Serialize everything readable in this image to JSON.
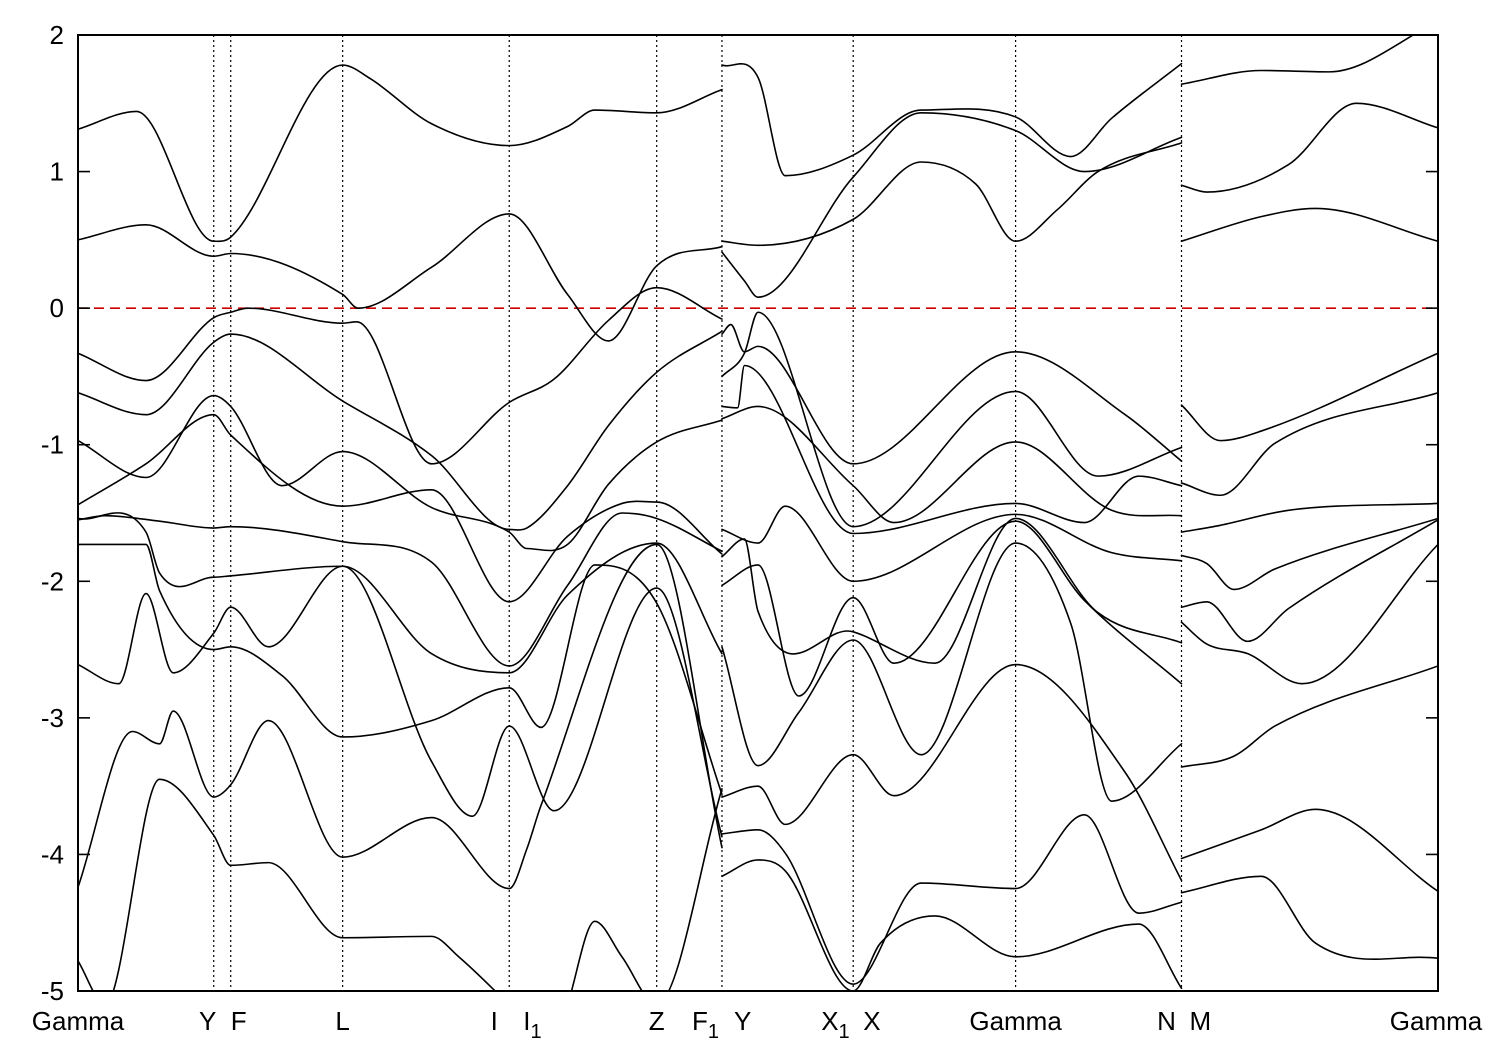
{
  "chart_data": {
    "type": "line",
    "title": "",
    "xlabel": "",
    "ylabel": "",
    "ylim": [
      -5,
      2
    ],
    "yticks": [
      2,
      1,
      0,
      -1,
      -2,
      -3,
      -4,
      -5
    ],
    "ytick_labels": [
      "2",
      "1",
      "0",
      "-1",
      "-2",
      "-3",
      "-4",
      "-5"
    ],
    "fermi_level": 0,
    "fermi_color": "#cc0000",
    "line_color": "#000000",
    "grid": false,
    "kpoints": [
      {
        "label": "Gamma",
        "x": 0.0,
        "line": false
      },
      {
        "label": "Y",
        "x": 0.0998,
        "line": true
      },
      {
        "label": "F",
        "x": 0.1123,
        "line": true
      },
      {
        "label": "L",
        "x": 0.1946,
        "line": true
      },
      {
        "label": "I",
        "x": 0.3171,
        "line": true
      },
      {
        "label": "I1",
        "x": 0.3171,
        "line": false
      },
      {
        "label": "Z",
        "x": 0.4255,
        "line": true
      },
      {
        "label": "F1",
        "x": 0.4735,
        "line": true
      },
      {
        "label": "Y",
        "x": 0.4735,
        "line": false
      },
      {
        "label": "X1",
        "x": 0.57,
        "line": true
      },
      {
        "label": "X",
        "x": 0.57,
        "line": false
      },
      {
        "label": "Gamma",
        "x": 0.6894,
        "line": true
      },
      {
        "label": "N",
        "x": 0.8114,
        "line": true
      },
      {
        "label": "M",
        "x": 0.8114,
        "line": false
      },
      {
        "label": "Gamma",
        "x": 1.0,
        "line": false
      }
    ],
    "bands": [
      {
        "x": [
          0.0,
          0.043,
          0.0998,
          0.1123,
          0.1946,
          0.215,
          0.26,
          0.3171,
          0.36,
          0.38,
          0.4255,
          0.4735
        ],
        "y": [
          1.31,
          1.44,
          0.49,
          0.52,
          1.78,
          1.68,
          1.35,
          1.19,
          1.33,
          1.45,
          1.43,
          1.6
        ]
      },
      {
        "x": [
          0.0,
          0.05,
          0.0998,
          0.1123,
          0.1946,
          0.206,
          0.26,
          0.3171,
          0.36,
          0.39,
          0.4255,
          0.4735
        ],
        "y": [
          0.5,
          0.61,
          0.38,
          0.4,
          0.1,
          0.0,
          0.3,
          0.69,
          0.1,
          -0.24,
          0.31,
          0.45
        ]
      },
      {
        "x": [
          0.0,
          0.05,
          0.0998,
          0.1123,
          0.125,
          0.1946,
          0.205,
          0.26,
          0.3171,
          0.35,
          0.39,
          0.4255,
          0.4735
        ],
        "y": [
          -0.33,
          -0.53,
          -0.07,
          -0.03,
          0.0,
          -0.11,
          -0.1,
          -1.14,
          -0.69,
          -0.52,
          -0.09,
          0.15,
          -0.08
        ]
      },
      {
        "x": [
          0.0,
          0.05,
          0.0998,
          0.1123,
          0.1946,
          0.26,
          0.3171,
          0.33,
          0.36,
          0.39,
          0.4255,
          0.4735
        ],
        "y": [
          -0.62,
          -0.78,
          -0.25,
          -0.19,
          -0.68,
          -1.08,
          -1.62,
          -1.61,
          -1.3,
          -0.86,
          -0.47,
          -0.17
        ]
      },
      {
        "x": [
          0.0,
          0.05,
          0.0998,
          0.1123,
          0.15,
          0.1946,
          0.26,
          0.3171,
          0.33,
          0.36,
          0.39,
          0.4255,
          0.4735
        ],
        "y": [
          -0.97,
          -1.24,
          -0.64,
          -0.72,
          -1.3,
          -1.05,
          -1.46,
          -1.64,
          -1.76,
          -1.73,
          -1.29,
          -0.98,
          -0.82
        ]
      },
      {
        "x": [
          0.0,
          0.05,
          0.0998,
          0.1123,
          0.1946,
          0.26,
          0.3171,
          0.36,
          0.4,
          0.4255,
          0.4735
        ],
        "y": [
          -1.44,
          -1.14,
          -0.78,
          -0.93,
          -1.45,
          -1.33,
          -2.15,
          -1.67,
          -1.43,
          -1.42,
          -1.8
        ]
      },
      {
        "x": [
          0.0,
          0.02,
          0.06,
          0.0998,
          0.1123,
          0.1946,
          0.26,
          0.3171,
          0.36,
          0.4,
          0.4255,
          0.4735
        ],
        "y": [
          -1.55,
          -1.52,
          -1.56,
          -1.61,
          -1.6,
          -1.71,
          -1.86,
          -2.62,
          -2.03,
          -1.5,
          -1.54,
          -1.78
        ]
      },
      {
        "x": [
          0.0,
          0.05,
          0.06,
          0.0998,
          0.1123,
          0.1946,
          0.26,
          0.3171,
          0.36,
          0.4255,
          0.4735
        ],
        "y": [
          -1.54,
          -1.64,
          -1.94,
          -1.97,
          -1.96,
          -1.89,
          -2.53,
          -2.67,
          -2.1,
          -1.72,
          -2.53
        ]
      },
      {
        "x": [
          0.0,
          0.05,
          0.06,
          0.0998,
          0.1123,
          0.15,
          0.1946,
          0.26,
          0.3171,
          0.3405,
          0.38,
          0.4255,
          0.4735
        ],
        "y": [
          -1.73,
          -1.73,
          -2.07,
          -2.5,
          -2.48,
          -2.69,
          -3.14,
          -3.02,
          -2.78,
          -3.07,
          -1.88,
          -2.16,
          -3.56
        ]
      },
      {
        "x": [
          0.0,
          0.03,
          0.05,
          0.07,
          0.0998,
          0.1123,
          0.14,
          0.1946,
          0.26,
          0.29,
          0.3171,
          0.35,
          0.4255,
          0.4735
        ],
        "y": [
          -2.61,
          -2.75,
          -2.09,
          -2.67,
          -2.38,
          -2.19,
          -2.48,
          -1.89,
          -3.32,
          -3.72,
          -3.06,
          -3.68,
          -2.05,
          -3.87
        ]
      },
      {
        "x": [
          0.0,
          0.04,
          0.06,
          0.07,
          0.0998,
          0.1123,
          0.14,
          0.1946,
          0.26,
          0.3171,
          0.33,
          0.3405,
          0.4255,
          0.4735
        ],
        "y": [
          -4.24,
          -3.1,
          -3.19,
          -2.95,
          -3.58,
          -3.49,
          -3.02,
          -4.02,
          -3.73,
          -4.25,
          -3.96,
          -3.64,
          -1.73,
          -3.95
        ]
      },
      {
        "x": [
          0.0,
          0.02,
          0.06,
          0.0998,
          0.1123,
          0.14,
          0.1946,
          0.26,
          0.28,
          0.3171
        ],
        "y": [
          -4.78,
          -5.1,
          -3.45,
          -3.86,
          -4.08,
          -4.06,
          -4.61,
          -4.6,
          -4.75,
          -5.1
        ]
      },
      {
        "x": [
          0.36,
          0.38,
          0.4,
          0.4255,
          0.4735
        ],
        "y": [
          -5.1,
          -4.49,
          -4.75,
          -5.1,
          -3.52
        ]
      },
      {
        "x": [
          0.4735,
          0.5,
          0.52,
          0.57,
          0.62,
          0.6894,
          0.73,
          0.76,
          0.8114
        ],
        "y": [
          1.78,
          1.69,
          0.97,
          1.12,
          1.45,
          1.4,
          1.11,
          1.39,
          1.79
        ]
      },
      {
        "x": [
          0.4735,
          0.5,
          0.57,
          0.62,
          0.66,
          0.6894,
          0.72,
          0.75,
          0.8114
        ],
        "y": [
          0.49,
          0.46,
          0.65,
          1.07,
          0.91,
          0.49,
          0.72,
          1.0,
          1.21
        ]
      },
      {
        "x": [
          0.4735,
          0.49,
          0.5,
          0.57,
          0.62,
          0.6894,
          0.74,
          0.8114
        ],
        "y": [
          0.41,
          0.2,
          0.08,
          0.96,
          1.43,
          1.3,
          1.0,
          1.25
        ]
      },
      {
        "x": [
          0.4735,
          0.48,
          0.49,
          0.5,
          0.57,
          0.6894,
          0.77,
          0.8114
        ],
        "y": [
          -0.19,
          -0.12,
          -0.32,
          -0.28,
          -1.14,
          -0.32,
          -0.78,
          -1.12
        ]
      },
      {
        "x": [
          0.4735,
          0.49,
          0.5,
          0.57,
          0.6894,
          0.75,
          0.8114
        ],
        "y": [
          -0.5,
          -0.33,
          -0.03,
          -1.6,
          -0.61,
          -1.23,
          -1.02
        ]
      },
      {
        "x": [
          0.4735,
          0.5,
          0.57,
          0.6,
          0.6894,
          0.76,
          0.8114
        ],
        "y": [
          -0.81,
          -0.72,
          -1.3,
          -1.57,
          -0.98,
          -1.48,
          -1.52
        ]
      },
      {
        "x": [
          0.4735,
          0.485,
          0.49,
          0.57,
          0.6894,
          0.74,
          0.78,
          0.8114
        ],
        "y": [
          -0.72,
          -0.73,
          -0.42,
          -1.65,
          -1.43,
          -1.57,
          -1.23,
          -1.3
        ]
      },
      {
        "x": [
          0.4735,
          0.5,
          0.52,
          0.57,
          0.6894,
          0.76,
          0.8114
        ],
        "y": [
          -1.62,
          -1.72,
          -1.45,
          -2.0,
          -1.51,
          -1.79,
          -1.85
        ]
      },
      {
        "x": [
          0.4735,
          0.49,
          0.5,
          0.57,
          0.63,
          0.6894,
          0.75,
          0.8114
        ],
        "y": [
          -1.82,
          -1.69,
          -2.22,
          -2.37,
          -2.6,
          -1.54,
          -2.23,
          -2.45
        ]
      },
      {
        "x": [
          0.4735,
          0.5,
          0.53,
          0.57,
          0.6,
          0.6894,
          0.74,
          0.8114
        ],
        "y": [
          -2.03,
          -1.88,
          -2.84,
          -2.12,
          -2.6,
          -1.56,
          -2.14,
          -2.75
        ]
      },
      {
        "x": [
          0.4735,
          0.5,
          0.53,
          0.57,
          0.62,
          0.6894,
          0.73,
          0.76,
          0.8114
        ],
        "y": [
          -2.48,
          -3.35,
          -2.96,
          -2.43,
          -3.27,
          -1.72,
          -2.31,
          -3.61,
          -3.19
        ]
      },
      {
        "x": [
          0.4735,
          0.5,
          0.52,
          0.57,
          0.6,
          0.6894,
          0.77,
          0.8114
        ],
        "y": [
          -3.58,
          -3.5,
          -3.78,
          -3.27,
          -3.57,
          -2.61,
          -3.4,
          -4.19
        ]
      },
      {
        "x": [
          0.4735,
          0.5,
          0.52,
          0.57,
          0.62,
          0.6894,
          0.74,
          0.78,
          0.8114
        ],
        "y": [
          -3.85,
          -3.82,
          -3.99,
          -4.95,
          -4.21,
          -4.25,
          -3.71,
          -4.43,
          -4.35
        ]
      },
      {
        "x": [
          0.4735,
          0.5,
          0.52,
          0.57,
          0.59,
          0.63,
          0.6894,
          0.78,
          0.8114
        ],
        "y": [
          -4.16,
          -4.04,
          -4.12,
          -5.0,
          -4.65,
          -4.45,
          -4.75,
          -4.51,
          -4.98
        ]
      },
      {
        "x": [
          0.8114,
          0.87,
          0.92,
          1.0
        ],
        "y": [
          1.64,
          1.74,
          1.73,
          2.1
        ]
      },
      {
        "x": [
          0.8114,
          0.83,
          0.89,
          0.94,
          1.0
        ],
        "y": [
          0.9,
          0.85,
          1.05,
          1.5,
          1.32
        ]
      },
      {
        "x": [
          0.8114,
          0.87,
          0.91,
          1.0
        ],
        "y": [
          0.49,
          0.67,
          0.73,
          0.49
        ]
      },
      {
        "x": [
          0.8114,
          0.84,
          0.87,
          1.0
        ],
        "y": [
          -0.71,
          -0.97,
          -0.9,
          -0.33
        ]
      },
      {
        "x": [
          0.8114,
          0.84,
          0.88,
          1.0
        ],
        "y": [
          -1.28,
          -1.37,
          -0.99,
          -0.62
        ]
      },
      {
        "x": [
          0.8114,
          0.84,
          0.89,
          1.0
        ],
        "y": [
          -1.64,
          -1.59,
          -1.48,
          -1.43
        ]
      },
      {
        "x": [
          0.8114,
          0.83,
          0.85,
          0.88,
          1.0
        ],
        "y": [
          -1.81,
          -1.87,
          -2.06,
          -1.91,
          -1.54
        ]
      },
      {
        "x": [
          0.8114,
          0.83,
          0.86,
          0.89,
          1.0
        ],
        "y": [
          -2.19,
          -2.15,
          -2.44,
          -2.2,
          -1.55
        ]
      },
      {
        "x": [
          0.8114,
          0.83,
          0.86,
          0.9,
          1.0
        ],
        "y": [
          -2.3,
          -2.46,
          -2.53,
          -2.75,
          -1.73
        ]
      },
      {
        "x": [
          0.8114,
          0.85,
          0.88,
          1.0
        ],
        "y": [
          -3.36,
          -3.28,
          -3.06,
          -2.62
        ]
      },
      {
        "x": [
          0.8114,
          0.87,
          0.91,
          1.0
        ],
        "y": [
          -4.03,
          -3.82,
          -3.67,
          -4.27
        ]
      },
      {
        "x": [
          0.8114,
          0.87,
          0.91,
          1.0
        ],
        "y": [
          -4.28,
          -4.16,
          -4.65,
          -4.76
        ]
      }
    ]
  }
}
